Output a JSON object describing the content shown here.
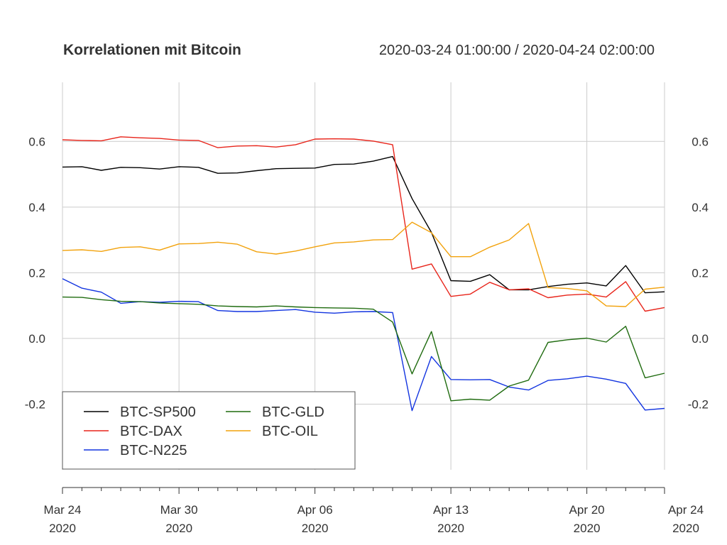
{
  "chart_data": {
    "type": "line",
    "title": "Korrelationen mit Bitcoin",
    "date_range": "2020-03-24 01:00:00 / 2020-04-24 02:00:00",
    "x": [
      "2020-03-24",
      "2020-03-25",
      "2020-03-26",
      "2020-03-27",
      "2020-03-28",
      "2020-03-29",
      "2020-03-30",
      "2020-03-31",
      "2020-04-01",
      "2020-04-02",
      "2020-04-03",
      "2020-04-04",
      "2020-04-05",
      "2020-04-06",
      "2020-04-07",
      "2020-04-08",
      "2020-04-09",
      "2020-04-10",
      "2020-04-11",
      "2020-04-12",
      "2020-04-13",
      "2020-04-14",
      "2020-04-15",
      "2020-04-16",
      "2020-04-17",
      "2020-04-18",
      "2020-04-19",
      "2020-04-20",
      "2020-04-21",
      "2020-04-22",
      "2020-04-23",
      "2020-04-24"
    ],
    "ylim": [
      -0.4,
      0.78
    ],
    "yticks": [
      -0.2,
      0.0,
      0.2,
      0.4,
      0.6
    ],
    "ytick_labels": [
      "-0.2",
      "0.0",
      "0.2",
      "0.4",
      "0.6"
    ],
    "xticks": [
      {
        "date": "2020-03-24",
        "line1": "Mar 24",
        "line2": "2020"
      },
      {
        "date": "2020-03-30",
        "line1": "Mar 30",
        "line2": "2020"
      },
      {
        "date": "2020-04-06",
        "line1": "Apr 06",
        "line2": "2020"
      },
      {
        "date": "2020-04-13",
        "line1": "Apr 13",
        "line2": "2020"
      },
      {
        "date": "2020-04-20",
        "line1": "Apr 20",
        "line2": "2020"
      },
      {
        "date": "2020-04-24",
        "line1": "Apr 24",
        "line2": "2020"
      }
    ],
    "grid": true,
    "legend_position": "bottom-left",
    "series": [
      {
        "name": "BTC-SP500",
        "color": "#000000",
        "values": [
          0.522,
          0.523,
          0.512,
          0.521,
          0.52,
          0.516,
          0.523,
          0.521,
          0.503,
          0.504,
          0.511,
          0.517,
          0.518,
          0.519,
          0.53,
          0.531,
          0.54,
          0.554,
          0.426,
          0.323,
          0.176,
          0.174,
          0.194,
          0.148,
          0.148,
          0.158,
          0.165,
          0.169,
          0.16,
          0.222,
          0.139,
          0.142
        ]
      },
      {
        "name": "BTC-DAX",
        "color": "#e8241a",
        "values": [
          0.605,
          0.603,
          0.602,
          0.614,
          0.611,
          0.609,
          0.604,
          0.603,
          0.581,
          0.586,
          0.587,
          0.583,
          0.59,
          0.607,
          0.608,
          0.607,
          0.601,
          0.59,
          0.211,
          0.227,
          0.128,
          0.135,
          0.171,
          0.148,
          0.151,
          0.124,
          0.132,
          0.135,
          0.126,
          0.173,
          0.083,
          0.094
        ]
      },
      {
        "name": "BTC-N225",
        "color": "#1234e0",
        "values": [
          0.182,
          0.153,
          0.141,
          0.107,
          0.112,
          0.11,
          0.113,
          0.112,
          0.085,
          0.082,
          0.082,
          0.085,
          0.088,
          0.08,
          0.077,
          0.081,
          0.082,
          0.079,
          -0.22,
          -0.055,
          -0.125,
          -0.126,
          -0.125,
          -0.148,
          -0.157,
          -0.128,
          -0.123,
          -0.115,
          -0.124,
          -0.137,
          -0.218,
          -0.213
        ]
      },
      {
        "name": "BTC-GLD",
        "color": "#1f6b0f",
        "values": [
          0.126,
          0.125,
          0.118,
          0.113,
          0.112,
          0.108,
          0.106,
          0.104,
          0.099,
          0.097,
          0.096,
          0.099,
          0.096,
          0.094,
          0.093,
          0.092,
          0.089,
          0.05,
          -0.108,
          0.021,
          -0.19,
          -0.185,
          -0.188,
          -0.145,
          -0.127,
          -0.012,
          -0.004,
          0.001,
          -0.011,
          0.037,
          -0.12,
          -0.106
        ]
      },
      {
        "name": "BTC-OIL",
        "color": "#f2a20c",
        "values": [
          0.268,
          0.27,
          0.265,
          0.277,
          0.279,
          0.269,
          0.288,
          0.289,
          0.293,
          0.287,
          0.264,
          0.257,
          0.266,
          0.279,
          0.291,
          0.294,
          0.3,
          0.301,
          0.354,
          0.322,
          0.249,
          0.249,
          0.278,
          0.3,
          0.35,
          0.155,
          0.152,
          0.145,
          0.099,
          0.097,
          0.15,
          0.156
        ]
      }
    ]
  }
}
